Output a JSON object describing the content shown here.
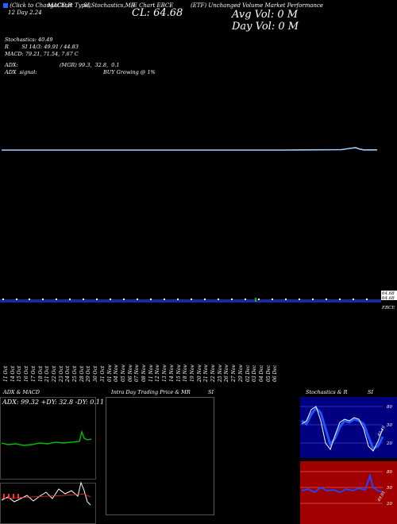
{
  "header": {
    "legend_text": "(Click to ChangeChart Type)",
    "row1": "12 Day     2.24",
    "row2_left": "MACD,B",
    "row2_mid": "SI,Stochastics,MR",
    "symbol_line": "(E Chart EBCE",
    "close": "CL: 64.68",
    "right_small": "(ETF) Unchanged Volume Market Performance",
    "avg_vol": "Avg Vol: 0   M",
    "day_vol": "Day Vol: 0   M"
  },
  "indicators": {
    "stochastics": "Stochastics: 40.49",
    "rsi": "R        SI 14/3: 49.91 / 44.83",
    "macd": "MACD: 79.21, 71.54, 7.67 C",
    "adx_label": "ADX:",
    "adx_value": "(MGR) 99.3,  32.8,  0.1",
    "adx_signal_label": "ADX  signal:",
    "adx_signal_value": "BUY Growing @ 1%"
  },
  "price_labels": {
    "top": "64.68",
    "mid": "64.68",
    "bottom": "EBCE"
  },
  "dates": [
    "11 Oct",
    "14 Oct",
    "15 Oct",
    "16 Oct",
    "17 Oct",
    "18 Oct",
    "21 Oct",
    "22 Oct",
    "23 Oct",
    "24 Oct",
    "25 Oct",
    "28 Oct",
    "29 Oct",
    "30 Oct",
    "31 Oct",
    "01 Nov",
    "04 Nov",
    "05 Nov",
    "06 Nov",
    "07 Nov",
    "08 Nov",
    "11 Nov",
    "12 Nov",
    "13 Nov",
    "14 Nov",
    "15 Nov",
    "18 Nov",
    "19 Nov",
    "20 Nov",
    "21 Nov",
    "22 Nov",
    "25 Nov",
    "26 Nov",
    "27 Nov",
    "29 Nov",
    "02 Dec",
    "03 Dec",
    "04 Dec",
    "05 Dec",
    "06 Dec"
  ],
  "panels": {
    "adx_title": "ADX  & MACD",
    "adx_readout": "ADX: 99.32  +DY: 32.8   -DY: 0.11",
    "intraday_title": "Intra  Day Trading Price  & MR",
    "intraday_title_right": "SI",
    "stoch_title": "Stochastics & R",
    "stoch_title_right": "SI",
    "stoch_levels": [
      "80",
      "50",
      "20"
    ],
    "stoch_value_label": "40.49",
    "rsi_levels": [
      "80",
      "50",
      "20"
    ],
    "rsi_value_label": "49.91"
  },
  "colors": {
    "price_line": "#9fd0ff",
    "volume_band": "#1a2a9c",
    "stoch_bg": "#000080",
    "rsi_bg": "#a00000",
    "adx_line": "#00c000",
    "blue_line": "#2244ff"
  }
}
